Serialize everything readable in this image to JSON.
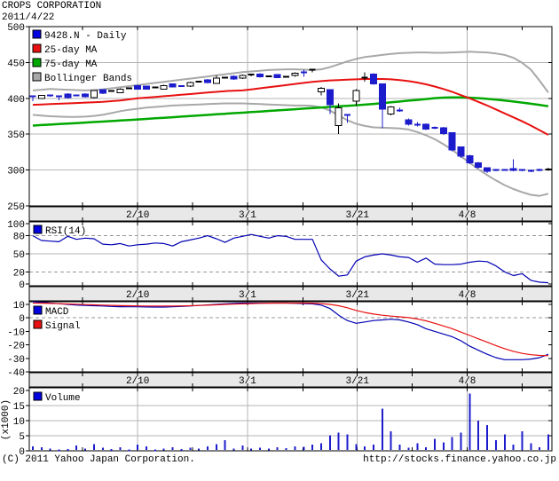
{
  "header": {
    "title": "CROPS CORPORATION",
    "date": "2011/4/22"
  },
  "footer": {
    "copyright": "(C) 2011 Yahoo Japan Corporation.",
    "url": "http://stocks.finance.yahoo.co.jp"
  },
  "colors": {
    "up_candle": "#ffffff",
    "down_candle": "#1c1ccc",
    "flat_black": "#000000",
    "ma25": "#e81010",
    "ma75": "#00a800",
    "bollinger": "#a8a8a8",
    "rsi_line": "#0000b4",
    "macd_line": "#0000b4",
    "signal_line": "#e81010",
    "volume_bar": "#1c1ccc",
    "grid": "#b4b4b4",
    "grid_dash": "#989898",
    "band_bg": "#e8e8e8",
    "legend_blue": "#0000e0"
  },
  "x_axis": {
    "labels": [
      "2/10",
      "3/1",
      "3/21",
      "4/8"
    ],
    "label_days": [
      12,
      24.57,
      37.14,
      49.71
    ],
    "minor_days": [
      5.7,
      18.3,
      30.9,
      43.4,
      56.0
    ]
  },
  "chart_data": [
    {
      "type": "candlestick",
      "title": "9428.N - Daily",
      "legend": [
        {
          "label": "9428.N - Daily",
          "color_key": "legend_blue"
        },
        {
          "label": "25-day MA",
          "color_key": "ma25"
        },
        {
          "label": "75-day MA",
          "color_key": "ma75"
        },
        {
          "label": "Bollinger Bands",
          "color_key": "bollinger"
        }
      ],
      "ylim": [
        250,
        500
      ],
      "yticks": [
        500,
        450,
        400,
        350,
        300,
        250
      ],
      "hgrid": [
        450,
        400,
        350,
        300
      ],
      "candles": [
        [
          403,
          404,
          396,
          403,
          "db"
        ],
        [
          400,
          405,
          399,
          404,
          "w"
        ],
        [
          404,
          405,
          402,
          404,
          "db"
        ],
        [
          403,
          404,
          397,
          403,
          "db"
        ],
        [
          406,
          407,
          400,
          401,
          "b"
        ],
        [
          404,
          405,
          403,
          404,
          "db"
        ],
        [
          406,
          407,
          401,
          402,
          "b"
        ],
        [
          401,
          411,
          400,
          411,
          "w"
        ],
        [
          412,
          413,
          406,
          407,
          "b"
        ],
        [
          410,
          411,
          409,
          410,
          "dk"
        ],
        [
          408,
          414,
          407,
          413,
          "w"
        ],
        [
          414,
          415,
          413,
          414,
          "dk"
        ],
        [
          418,
          419,
          412,
          413,
          "b"
        ],
        [
          417,
          418,
          412,
          413,
          "b"
        ],
        [
          415,
          416,
          414,
          415,
          "dk"
        ],
        [
          413,
          419,
          412,
          418,
          "w"
        ],
        [
          420,
          421,
          415,
          416,
          "b"
        ],
        [
          417,
          418,
          416,
          417,
          "db"
        ],
        [
          417,
          423,
          416,
          422,
          "w"
        ],
        [
          423,
          424,
          422,
          423,
          "dk"
        ],
        [
          426,
          427,
          421,
          422,
          "b"
        ],
        [
          421,
          432,
          420,
          428,
          "w"
        ],
        [
          429,
          430,
          428,
          429,
          "dk"
        ],
        [
          431,
          432,
          426,
          427,
          "b"
        ],
        [
          428,
          433,
          427,
          432,
          "w"
        ],
        [
          433,
          434,
          431,
          433,
          "dk"
        ],
        [
          434,
          435,
          429,
          430,
          "b"
        ],
        [
          431,
          432,
          430,
          431,
          "dk"
        ],
        [
          433,
          434,
          428,
          429,
          "b"
        ],
        [
          430,
          431,
          429,
          430,
          "dk"
        ],
        [
          432,
          436,
          430,
          435,
          "w"
        ],
        [
          436,
          440,
          430,
          436,
          "db"
        ],
        [
          438,
          441,
          436,
          440,
          "dk"
        ],
        [
          409,
          416,
          404,
          414,
          "w"
        ],
        [
          412,
          413,
          378,
          391,
          "b"
        ],
        [
          362,
          393,
          350,
          387,
          "w"
        ],
        [
          377,
          378,
          366,
          377,
          "db"
        ],
        [
          396,
          413,
          390,
          411,
          "w"
        ],
        [
          429,
          436,
          423,
          429,
          "dk"
        ],
        [
          434,
          435,
          419,
          420,
          "b"
        ],
        [
          420,
          421,
          358,
          385,
          "b"
        ],
        [
          378,
          389,
          376,
          388,
          "w"
        ],
        [
          386,
          387,
          381,
          383,
          "db"
        ],
        [
          370,
          372,
          362,
          364,
          "b"
        ],
        [
          366,
          367,
          361,
          363,
          "db"
        ],
        [
          364,
          365,
          356,
          357,
          "b"
        ],
        [
          360,
          361,
          357,
          359,
          "db"
        ],
        [
          359,
          360,
          349,
          351,
          "b"
        ],
        [
          352,
          353,
          326,
          328,
          "b"
        ],
        [
          332,
          333,
          317,
          319,
          "b"
        ],
        [
          320,
          321,
          308,
          310,
          "b"
        ],
        [
          310,
          311,
          302,
          304,
          "b"
        ],
        [
          303,
          304,
          296,
          298,
          "b"
        ],
        [
          300,
          301,
          298,
          300,
          "db"
        ],
        [
          300,
          301,
          299,
          300,
          "db"
        ],
        [
          301,
          315,
          298,
          302,
          "b"
        ],
        [
          300,
          301,
          298,
          300,
          "db"
        ],
        [
          300,
          301,
          297,
          299,
          "db"
        ],
        [
          300,
          302,
          298,
          300,
          "db"
        ],
        [
          301,
          303,
          299,
          301,
          "dk"
        ]
      ],
      "overlays": {
        "ma25": [
          391,
          391.5,
          392,
          392.5,
          393,
          393.5,
          394,
          394.5,
          395,
          396,
          397,
          398.5,
          400,
          401,
          402,
          403,
          404,
          405,
          406,
          407,
          408,
          409,
          410,
          410.5,
          411,
          412.5,
          414,
          415.5,
          417,
          418.5,
          420,
          421.5,
          423,
          424,
          425,
          425.5,
          426,
          426.5,
          427,
          427,
          427,
          426.5,
          425.5,
          424,
          422,
          419.5,
          416.5,
          413,
          409,
          404.5,
          400,
          395,
          390,
          384.5,
          379,
          373.5,
          368,
          362,
          355.5,
          349
        ],
        "ma75": [
          362,
          362.7,
          363.4,
          364.1,
          364.8,
          365.5,
          366.2,
          366.9,
          367.6,
          368.3,
          369,
          369.8,
          370.5,
          371.3,
          372.1,
          372.9,
          373.7,
          374.5,
          375.3,
          376.1,
          376.9,
          377.7,
          378.5,
          379.3,
          380,
          380.8,
          381.6,
          382.4,
          383.2,
          384,
          384.8,
          385.6,
          386.4,
          387.2,
          388,
          388.8,
          389.6,
          390.4,
          391.2,
          392.2,
          393.2,
          394.4,
          395.6,
          396.8,
          397.8,
          399,
          400.2,
          401,
          401.4,
          401.3,
          400.9,
          400.2,
          399.3,
          398.2,
          396.9,
          395.5,
          394,
          392.4,
          390.7,
          389
        ],
        "boll_upper": [
          411,
          412,
          413,
          412.5,
          412,
          411.5,
          411,
          411.5,
          412.5,
          414,
          415.5,
          417,
          418.5,
          420,
          421.5,
          423,
          424.5,
          426,
          427.5,
          429,
          430.5,
          432,
          433.5,
          435,
          436.5,
          437.5,
          438.5,
          439.5,
          440,
          440.5,
          440.5,
          440,
          439.5,
          440.5,
          443.5,
          447.5,
          451.5,
          455,
          457.5,
          459,
          460.5,
          462,
          463,
          463.5,
          464,
          464,
          463.5,
          463.5,
          464,
          464.5,
          465,
          464.5,
          464,
          462.5,
          460.5,
          456.5,
          449.5,
          440,
          424.5,
          408
        ],
        "boll_lower": [
          377,
          376,
          375,
          374.5,
          374,
          374,
          374.5,
          375.5,
          377,
          379.5,
          382,
          384,
          385.5,
          387,
          388,
          389,
          390,
          390.5,
          391,
          391.5,
          392,
          392.5,
          393,
          393,
          393,
          392.5,
          392,
          391.5,
          391,
          390.5,
          390,
          390,
          389.5,
          387.5,
          383,
          376,
          369.5,
          364.5,
          361.5,
          359.5,
          359,
          358.5,
          358,
          356.5,
          353,
          348.5,
          343,
          336,
          328,
          319,
          310,
          301,
          293,
          285.5,
          279,
          273.5,
          269,
          265.5,
          264,
          267
        ]
      }
    },
    {
      "type": "line",
      "title": "RSI(14)",
      "legend": [
        {
          "label": "RSI(14)",
          "color_key": "legend_blue"
        }
      ],
      "ylim": [
        0,
        100
      ],
      "yticks": [
        100,
        80,
        50,
        20,
        0
      ],
      "hgrid_dashed": [
        80,
        20
      ],
      "hgrid": [
        50
      ],
      "values": [
        80,
        72,
        71,
        70,
        79,
        74,
        76,
        75,
        66,
        65,
        67,
        63,
        65,
        66,
        68,
        67,
        63,
        70,
        73,
        76,
        80,
        75,
        69,
        76,
        79,
        82,
        79,
        76,
        80,
        79,
        74,
        74,
        74,
        40,
        25,
        13,
        15,
        38,
        45,
        48,
        50,
        48,
        45,
        44,
        36,
        43,
        33,
        32,
        32,
        33,
        36,
        38,
        37,
        30,
        20,
        14,
        17,
        6,
        3,
        2
      ]
    },
    {
      "type": "line",
      "title": "MACD",
      "legend": [
        {
          "label": "MACD",
          "color_key": "legend_blue"
        },
        {
          "label": "Signal",
          "color_key": "signal_line"
        }
      ],
      "ylim": [
        -40,
        12
      ],
      "yticks": [
        10,
        0,
        -10,
        -20,
        -30,
        -40
      ],
      "hgrid_dashed": [
        0
      ],
      "series": {
        "macd": [
          12,
          11.5,
          11,
          10.5,
          10,
          9.5,
          9.2,
          9,
          8.8,
          8.5,
          8.3,
          8.2,
          8.2,
          8.1,
          8,
          8,
          8.2,
          8.5,
          8.8,
          9.2,
          9.6,
          10,
          10.4,
          10.7,
          11,
          11,
          11,
          11,
          11,
          11,
          10.8,
          10.6,
          10.4,
          9.5,
          7,
          2,
          -2,
          -4,
          -3,
          -2,
          -1.5,
          -1,
          -1.5,
          -3,
          -5,
          -8,
          -10,
          -12,
          -14,
          -17,
          -21,
          -24,
          -27,
          -29.5,
          -31,
          -31,
          -31,
          -30.5,
          -29.5,
          -27
        ],
        "signal": [
          11,
          10.9,
          10.7,
          10.5,
          10.3,
          10.1,
          9.9,
          9.7,
          9.5,
          9.3,
          9.1,
          9,
          8.9,
          8.8,
          8.8,
          8.8,
          8.8,
          8.9,
          9,
          9.2,
          9.4,
          9.7,
          10,
          10.2,
          10.4,
          10.6,
          10.8,
          10.9,
          11,
          11,
          11,
          11,
          10.9,
          10.6,
          10,
          9,
          7.5,
          5.5,
          4,
          2.8,
          2,
          1.3,
          0.8,
          0.2,
          -0.8,
          -2.2,
          -4,
          -6,
          -8,
          -10.5,
          -13,
          -15.5,
          -18,
          -20.5,
          -22.8,
          -24.8,
          -26.3,
          -27.3,
          -27.8,
          -28
        ]
      }
    },
    {
      "type": "bar",
      "title": "Volume",
      "legend": [
        {
          "label": "Volume",
          "color_key": "legend_blue"
        }
      ],
      "unit_label": "(x1000)",
      "ylim": [
        0,
        21
      ],
      "yticks": [
        20,
        15,
        10,
        5,
        0
      ],
      "hgrid": [
        15,
        10,
        5
      ],
      "values": [
        1.5,
        1.2,
        0.8,
        0.5,
        0.6,
        1.8,
        0.7,
        2.2,
        1.0,
        0.6,
        1.2,
        0.5,
        2.0,
        1.5,
        0.5,
        0.8,
        1.2,
        0.6,
        1.0,
        0.7,
        1.5,
        2.2,
        3.5,
        0.8,
        1.8,
        0.8,
        1.0,
        0.7,
        1.2,
        0.9,
        1.5,
        1.3,
        2.0,
        2.5,
        5.2,
        6.0,
        5.5,
        2.2,
        1.5,
        2.0,
        14.0,
        6.5,
        2.0,
        1.0,
        2.5,
        1.2,
        4.0,
        2.8,
        4.5,
        6.0,
        19.0,
        10.0,
        8.5,
        3.5,
        5.5,
        2.0,
        6.5,
        2.5,
        1.2,
        5.5
      ]
    }
  ]
}
